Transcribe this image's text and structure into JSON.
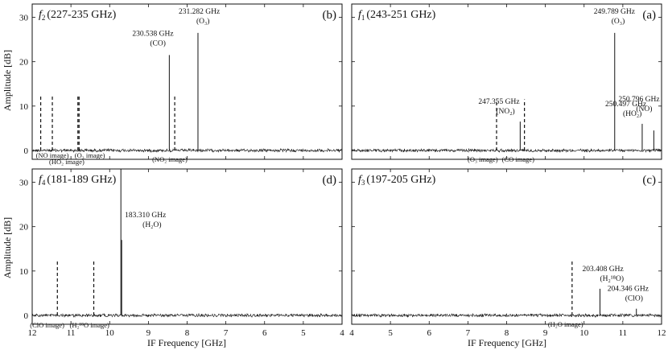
{
  "figure": {
    "ylabel": "Amplitude [dB]",
    "xlabel": "IF Frequency [GHz]"
  },
  "chart_data": [
    {
      "id": "b",
      "type": "line",
      "title_var": "f",
      "title_sub": "2",
      "title_rest": "(227-235 GHz)",
      "letter": "(b)",
      "xlim": [
        12,
        4
      ],
      "ylim": [
        -2,
        33
      ],
      "xticks": [
        12,
        11,
        10,
        9,
        8,
        7,
        6,
        5,
        4
      ],
      "yticks": [
        0,
        10,
        20,
        30
      ],
      "lines": [
        {
          "x": 8.46,
          "y": 21.5,
          "style": "solid",
          "label": "230.538 GHz",
          "species": "(CO)"
        },
        {
          "x": 7.72,
          "y": 26.5,
          "style": "solid",
          "label": "231.282 GHz",
          "species": "(O₃)"
        }
      ],
      "image_lines": [
        {
          "x": 11.78,
          "y": 12.5,
          "label": "(NO image)"
        },
        {
          "x": 11.48,
          "y": 12.5,
          "label": "(HO₂ image)"
        },
        {
          "x": 10.82,
          "y": 12.5,
          "label": "(O₃ image)"
        },
        {
          "x": 10.79,
          "y": 12.5,
          "label": ""
        },
        {
          "x": 8.32,
          "y": 12.5,
          "label": "(NO₂ image)"
        }
      ]
    },
    {
      "id": "a",
      "type": "line",
      "title_var": "f",
      "title_sub": "1",
      "title_rest": "(243-251 GHz)",
      "letter": "(a)",
      "xlim": [
        4,
        12
      ],
      "ylim": [
        -2,
        33
      ],
      "xticks": [
        4,
        5,
        6,
        7,
        8,
        9,
        10,
        11,
        12
      ],
      "yticks": [
        0,
        10,
        20,
        30
      ],
      "lines": [
        {
          "x": 8.35,
          "y": 6.5,
          "style": "solid",
          "label": "247.355 GHz",
          "species": "(NO₂)"
        },
        {
          "x": 10.79,
          "y": 26.5,
          "style": "solid",
          "label": "249.789 GHz",
          "species": "(O₃)"
        },
        {
          "x": 11.5,
          "y": 6.0,
          "style": "solid",
          "label": "250.497 GHz",
          "species": "(HO₂)"
        },
        {
          "x": 11.8,
          "y": 4.5,
          "style": "solid",
          "label": "250.796 GHz",
          "species": "(NO)"
        }
      ],
      "image_lines": [
        {
          "x": 7.74,
          "y": 11.5,
          "label": "(O₃ image)"
        },
        {
          "x": 8.46,
          "y": 11.5,
          "label": "(CO image)"
        }
      ]
    },
    {
      "id": "d",
      "type": "line",
      "title_var": "f",
      "title_sub": "4",
      "title_rest": "(181-189 GHz)",
      "letter": "(d)",
      "xlim": [
        12,
        4
      ],
      "ylim": [
        -2,
        33
      ],
      "xticks": [
        12,
        11,
        10,
        9,
        8,
        7,
        6,
        5,
        4
      ],
      "yticks": [
        0,
        10,
        20,
        30
      ],
      "lines": [
        {
          "x": 9.69,
          "y": 17.0,
          "style": "solid",
          "label": "183.310 GHz",
          "species": "(H₂O)"
        },
        {
          "x": 9.71,
          "y": 35.0,
          "style": "solid",
          "label": "",
          "species": ""
        }
      ],
      "image_lines": [
        {
          "x": 11.35,
          "y": 12.5,
          "label": "(ClO image)"
        },
        {
          "x": 10.41,
          "y": 12.5,
          "label": "(H₂¹⁸O image)"
        }
      ]
    },
    {
      "id": "c",
      "type": "line",
      "title_var": "f",
      "title_sub": "3",
      "title_rest": "(197-205 GHz)",
      "letter": "(c)",
      "xlim": [
        4,
        12
      ],
      "ylim": [
        -2,
        33
      ],
      "xticks": [
        4,
        5,
        6,
        7,
        8,
        9,
        10,
        11,
        12
      ],
      "yticks": [
        0,
        10,
        20,
        30
      ],
      "lines": [
        {
          "x": 10.41,
          "y": 6.0,
          "style": "solid",
          "label": "203.408 GHz",
          "species": "(H₂¹⁸O)"
        },
        {
          "x": 11.35,
          "y": 1.5,
          "style": "solid",
          "label": "204.346 GHz",
          "species": "(ClO)"
        }
      ],
      "image_lines": [
        {
          "x": 9.69,
          "y": 12.5,
          "label": "(H₂O image)"
        }
      ]
    }
  ]
}
